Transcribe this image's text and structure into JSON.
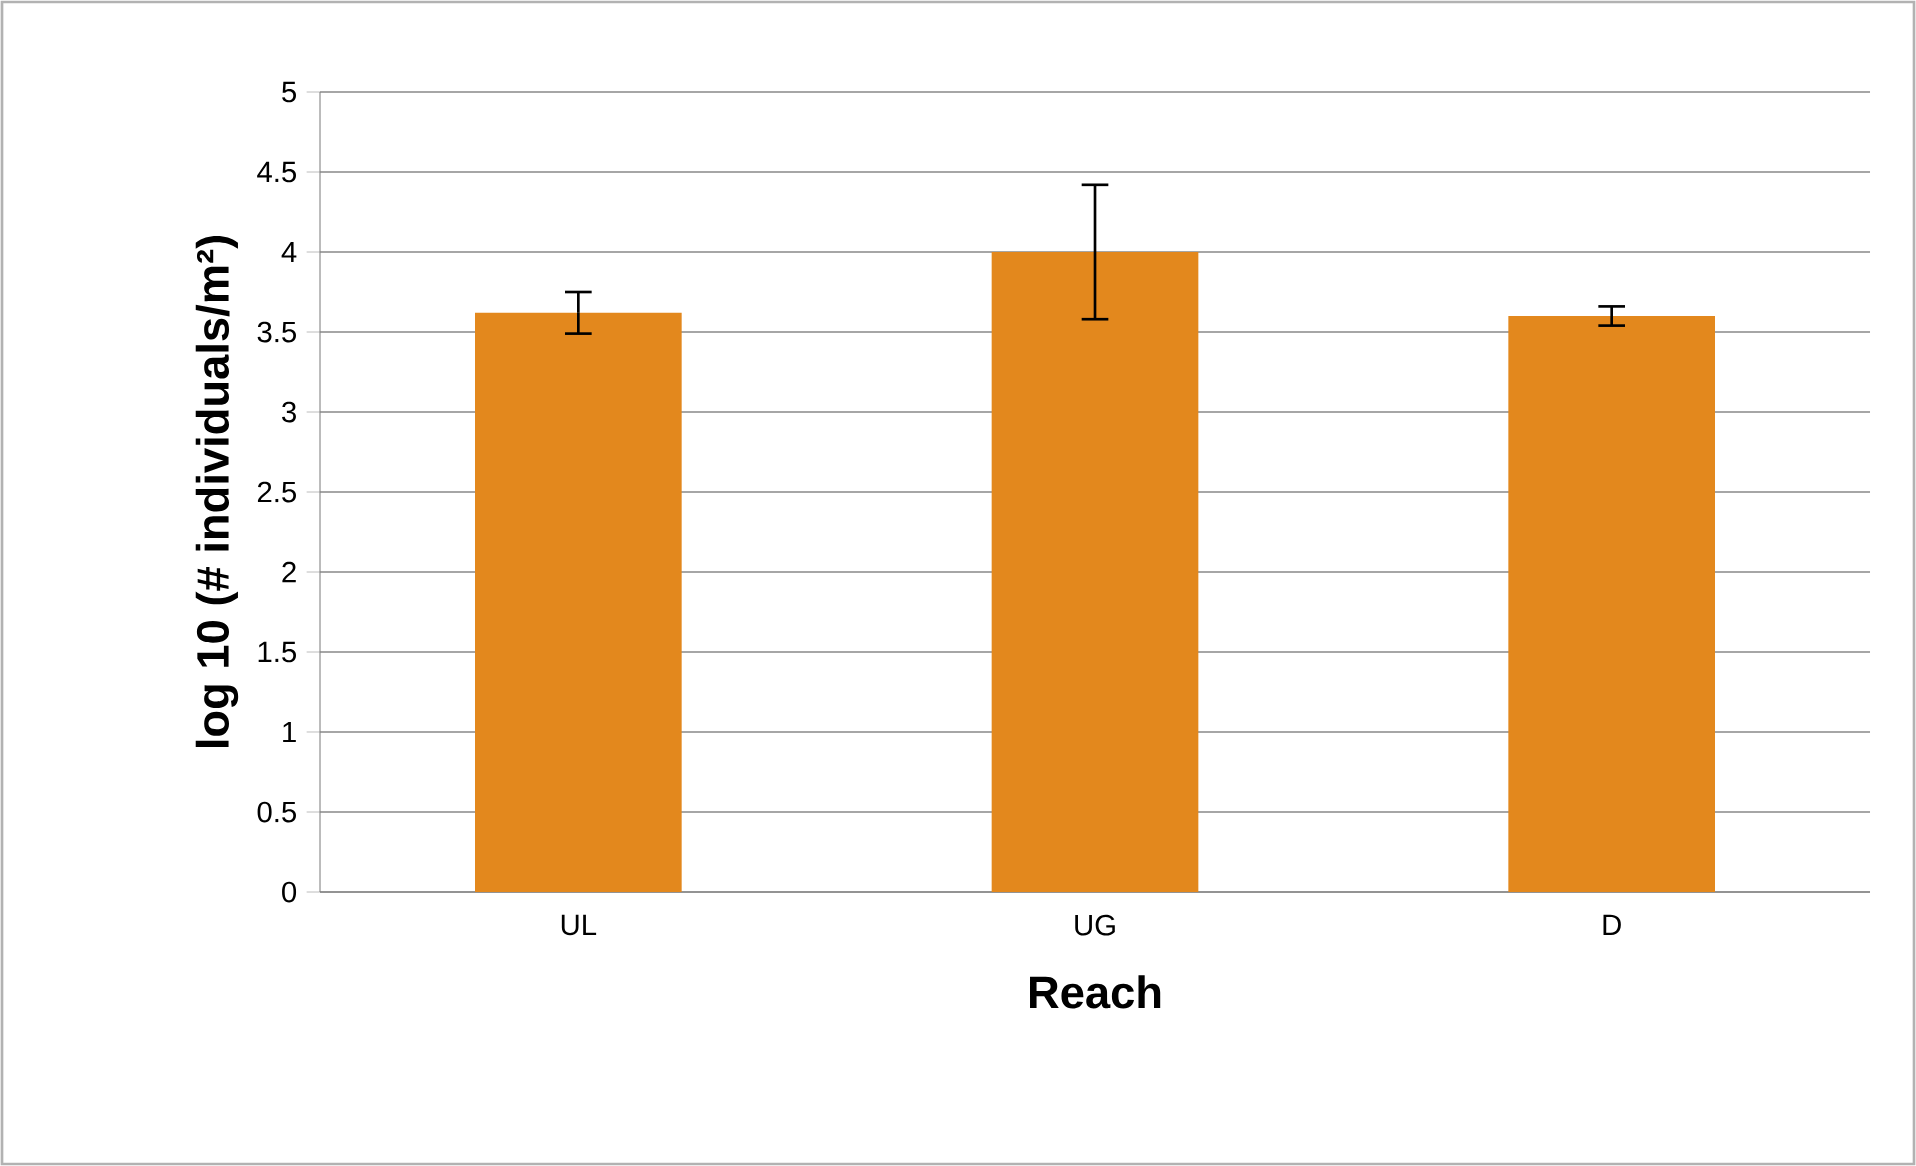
{
  "chart_data": {
    "type": "bar",
    "xlabel": "Reach",
    "ylabel": "log 10 (# individuals/m²)",
    "categories": [
      "UL",
      "UG",
      "D"
    ],
    "values": [
      3.62,
      4.0,
      3.6
    ],
    "errors": [
      0.13,
      0.42,
      0.06
    ],
    "color": "#e3881d",
    "ylim": [
      0,
      5
    ],
    "yticks": [
      0,
      0.5,
      1,
      1.5,
      2,
      2.5,
      3,
      3.5,
      4,
      4.5,
      5
    ],
    "grid": "y"
  }
}
